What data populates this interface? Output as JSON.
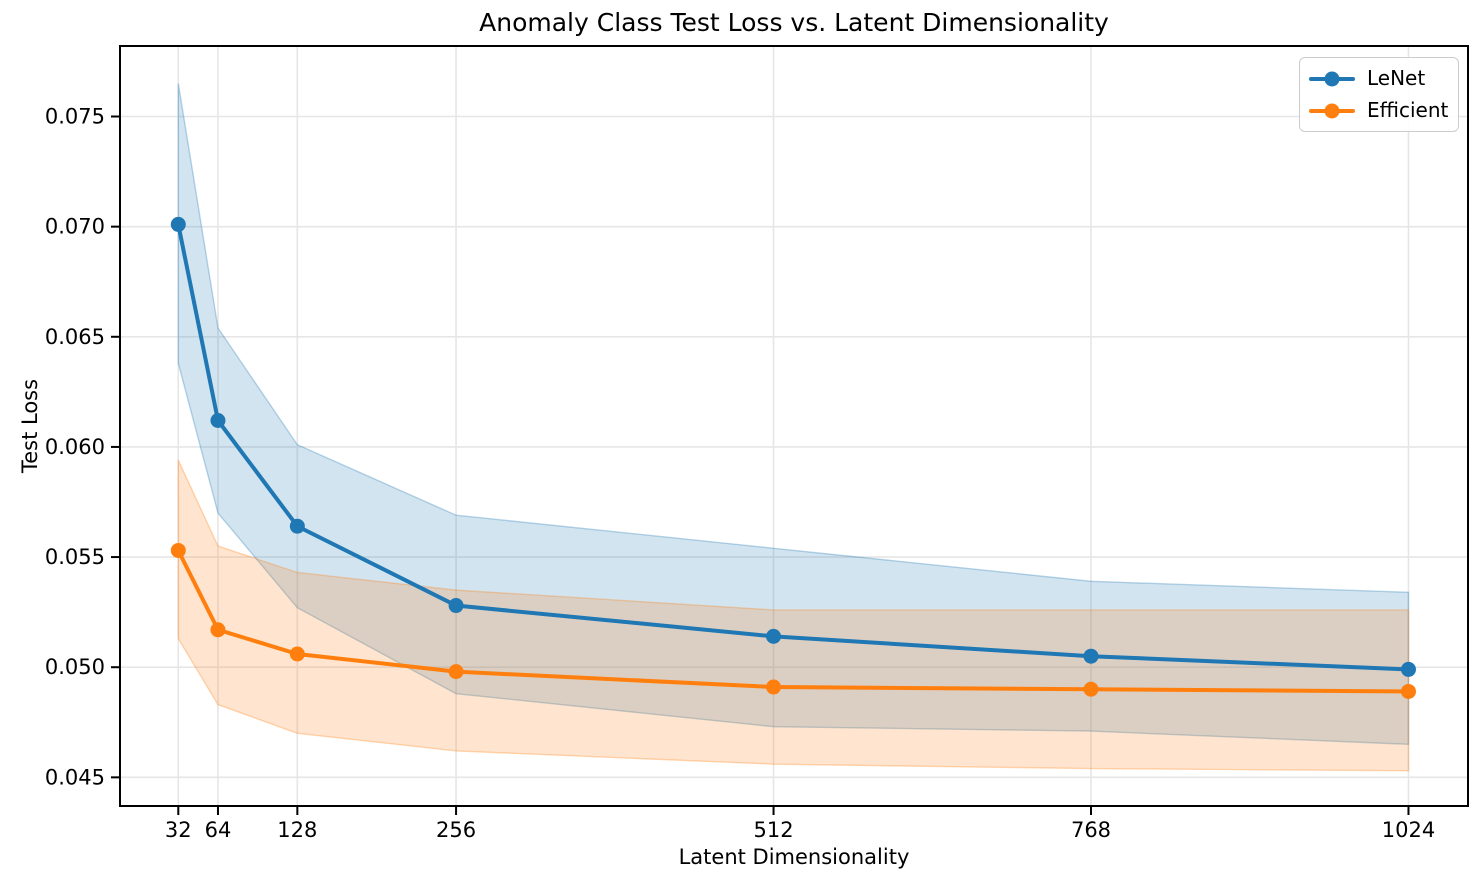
{
  "chart_data": {
    "type": "line",
    "title": "Anomaly Class Test Loss vs. Latent Dimensionality",
    "xlabel": "Latent Dimensionality",
    "ylabel": "Test Loss",
    "grid": true,
    "legend_position": "upper right",
    "x": [
      32,
      64,
      128,
      256,
      512,
      768,
      1024
    ],
    "xtick_labels": [
      "32",
      "64",
      "128",
      "256",
      "512",
      "768",
      "1024"
    ],
    "yticks": [
      0.045,
      0.05,
      0.055,
      0.06,
      0.065,
      0.07,
      0.075
    ],
    "ytick_labels": [
      "0.045",
      "0.050",
      "0.055",
      "0.060",
      "0.065",
      "0.070",
      "0.075"
    ],
    "xlim": [
      -15,
      1072
    ],
    "ylim": [
      0.0437,
      0.0782
    ],
    "colors": {
      "lenet": "#1f77b4",
      "efficient": "#ff7f0e",
      "grid": "#e6e6e6",
      "spine": "#000000"
    },
    "series": [
      {
        "name": "LeNet",
        "color": "#1f77b4",
        "values": [
          0.0701,
          0.0612,
          0.0564,
          0.0528,
          0.0514,
          0.0505,
          0.0499
        ],
        "band_lower": [
          0.0638,
          0.057,
          0.0527,
          0.0488,
          0.0473,
          0.0471,
          0.0465
        ],
        "band_upper": [
          0.0765,
          0.0654,
          0.0601,
          0.0569,
          0.0554,
          0.0539,
          0.0534
        ]
      },
      {
        "name": "Efficient",
        "color": "#ff7f0e",
        "values": [
          0.0553,
          0.0517,
          0.0506,
          0.0498,
          0.0491,
          0.049,
          0.0489
        ],
        "band_lower": [
          0.0513,
          0.0483,
          0.047,
          0.0462,
          0.0456,
          0.0454,
          0.0453
        ],
        "band_upper": [
          0.0594,
          0.0555,
          0.0543,
          0.0535,
          0.0526,
          0.0526,
          0.0526
        ]
      }
    ]
  }
}
